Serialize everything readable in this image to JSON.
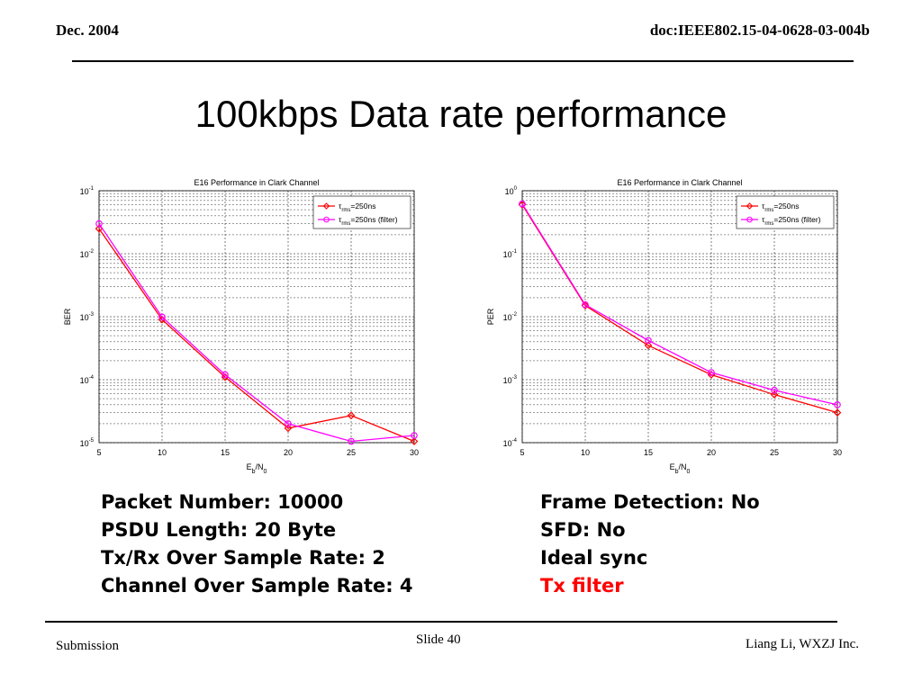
{
  "header": {
    "date": "Dec.  2004",
    "doc_id": "doc:IEEE802.15-04-0628-03-004b"
  },
  "slide_title": "100kbps Data rate performance",
  "chart_data": [
    {
      "type": "line",
      "title": "E16 Performance in Clark Channel",
      "xlabel": "E_b/N_0",
      "ylabel": "BER",
      "y_scale": "log",
      "x": [
        5,
        10,
        15,
        20,
        25,
        30
      ],
      "xlim": [
        5,
        30
      ],
      "ylim_exp": [
        -5,
        -1
      ],
      "grid": true,
      "legend_position": "top-right",
      "series": [
        {
          "name": "τrms=250ns",
          "color": "#ff0000",
          "marker": "diamond",
          "values": [
            0.025,
            0.0009,
            0.00011,
            1.7e-05,
            2.7e-05,
            1.05e-05
          ]
        },
        {
          "name": "τrms=250ns (filter)",
          "color": "#ff00ff",
          "marker": "circle",
          "values": [
            0.03,
            0.00099,
            0.00012,
            2e-05,
            1.05e-05,
            1.3e-05
          ]
        }
      ]
    },
    {
      "type": "line",
      "title": "E16 Performance in Clark Channel",
      "xlabel": "E_b/N_0",
      "ylabel": "PER",
      "y_scale": "log",
      "x": [
        5,
        10,
        15,
        20,
        25,
        30
      ],
      "xlim": [
        5,
        30
      ],
      "ylim_exp": [
        -4,
        0
      ],
      "grid": true,
      "legend_position": "top-right",
      "series": [
        {
          "name": "τrms=250ns",
          "color": "#ff0000",
          "marker": "diamond",
          "values": [
            0.6,
            0.015,
            0.0035,
            0.0012,
            0.00058,
            0.0003
          ]
        },
        {
          "name": "τrms=250ns (filter)",
          "color": "#ff00ff",
          "marker": "circle",
          "values": [
            0.62,
            0.0155,
            0.0042,
            0.0013,
            0.00068,
            0.0004
          ]
        }
      ]
    }
  ],
  "params_left": [
    "Packet Number: 10000",
    "PSDU Length: 20 Byte",
    "Tx/Rx Over Sample Rate: 2",
    "Channel Over Sample Rate: 4"
  ],
  "params_right": [
    "Frame Detection: No",
    "SFD: No",
    "Ideal sync",
    "Tx filter"
  ],
  "footer": {
    "left": "Submission",
    "center": "Slide 40",
    "right": "Liang Li, WXZJ Inc."
  }
}
